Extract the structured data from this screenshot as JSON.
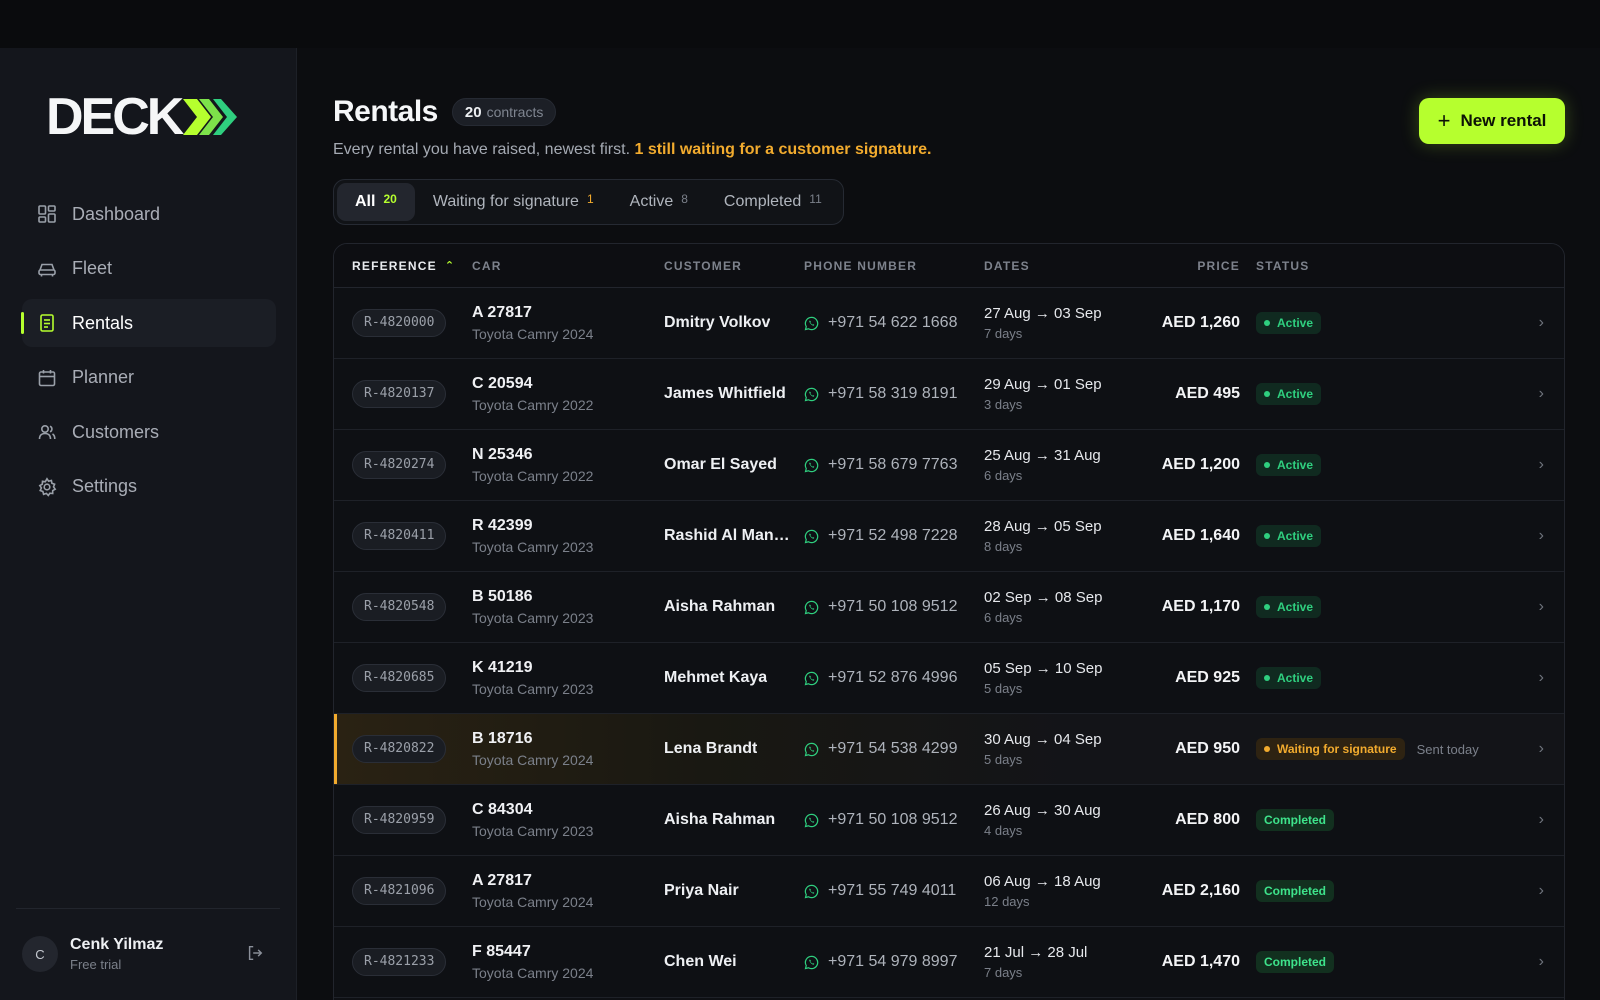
{
  "app": {
    "logo_text": "DECK",
    "accent": "#b6ff2e",
    "warning": "#f2ab2e",
    "success": "#2fcf7f"
  },
  "sidebar": {
    "items": [
      {
        "label": "Dashboard",
        "icon": "dashboard-icon",
        "active": false
      },
      {
        "label": "Fleet",
        "icon": "car-icon",
        "active": false
      },
      {
        "label": "Rentals",
        "icon": "receipt-icon",
        "active": true
      },
      {
        "label": "Planner",
        "icon": "calendar-icon",
        "active": false
      },
      {
        "label": "Customers",
        "icon": "users-icon",
        "active": false
      },
      {
        "label": "Settings",
        "icon": "gear-icon",
        "active": false
      }
    ],
    "user": {
      "initial": "C",
      "name": "Cenk Yilmaz",
      "plan": "Free trial",
      "logout_icon": "logout-icon"
    }
  },
  "header": {
    "title": "Rentals",
    "count_value": "20",
    "count_unit": "contracts",
    "subtitle": "Every rental you have raised, newest first.",
    "subtitle_warning": "1 still waiting for a customer signature.",
    "new_button": "New rental"
  },
  "tabs": [
    {
      "label": "All",
      "count": "20",
      "active": true
    },
    {
      "label": "Waiting for signature",
      "count": "1",
      "active": false
    },
    {
      "label": "Active",
      "count": "8",
      "active": false
    },
    {
      "label": "Completed",
      "count": "11",
      "active": false
    }
  ],
  "table": {
    "columns": {
      "reference": "REFERENCE",
      "car": "CAR",
      "customer": "CUSTOMER",
      "phone": "PHONE NUMBER",
      "dates": "DATES",
      "price": "PRICE",
      "status": "STATUS"
    },
    "rows": [
      {
        "ref": "R-4820000",
        "plate": "A 27817",
        "model": "Toyota Camry 2024",
        "customer": "Dmitry Volkov",
        "phone": "+971 54 622 1668",
        "range": "27 Aug → 03 Sep",
        "days": "7 days",
        "price": "AED 1,260",
        "status": "Active",
        "kind": "active",
        "note": ""
      },
      {
        "ref": "R-4820137",
        "plate": "C 20594",
        "model": "Toyota Camry 2022",
        "customer": "James Whitfield",
        "phone": "+971 58 319 8191",
        "range": "29 Aug → 01 Sep",
        "days": "3 days",
        "price": "AED 495",
        "status": "Active",
        "kind": "active",
        "note": ""
      },
      {
        "ref": "R-4820274",
        "plate": "N 25346",
        "model": "Toyota Camry 2022",
        "customer": "Omar El Sayed",
        "phone": "+971 58 679 7763",
        "range": "25 Aug → 31 Aug",
        "days": "6 days",
        "price": "AED 1,200",
        "status": "Active",
        "kind": "active",
        "note": ""
      },
      {
        "ref": "R-4820411",
        "plate": "R 42399",
        "model": "Toyota Camry 2023",
        "customer": "Rashid Al Mans...",
        "phone": "+971 52 498 7228",
        "range": "28 Aug → 05 Sep",
        "days": "8 days",
        "price": "AED 1,640",
        "status": "Active",
        "kind": "active",
        "note": ""
      },
      {
        "ref": "R-4820548",
        "plate": "B 50186",
        "model": "Toyota Camry 2023",
        "customer": "Aisha Rahman",
        "phone": "+971 50 108 9512",
        "range": "02 Sep → 08 Sep",
        "days": "6 days",
        "price": "AED 1,170",
        "status": "Active",
        "kind": "active",
        "note": ""
      },
      {
        "ref": "R-4820685",
        "plate": "K 41219",
        "model": "Toyota Camry 2023",
        "customer": "Mehmet Kaya",
        "phone": "+971 52 876 4996",
        "range": "05 Sep → 10 Sep",
        "days": "5 days",
        "price": "AED 925",
        "status": "Active",
        "kind": "active",
        "note": ""
      },
      {
        "ref": "R-4820822",
        "plate": "B 18716",
        "model": "Toyota Camry 2024",
        "customer": "Lena Brandt",
        "phone": "+971 54 538 4299",
        "range": "30 Aug → 04 Sep",
        "days": "5 days",
        "price": "AED 950",
        "status": "Waiting for signature",
        "kind": "waiting",
        "note": "Sent today"
      },
      {
        "ref": "R-4820959",
        "plate": "C 84304",
        "model": "Toyota Camry 2023",
        "customer": "Aisha Rahman",
        "phone": "+971 50 108 9512",
        "range": "26 Aug → 30 Aug",
        "days": "4 days",
        "price": "AED 800",
        "status": "Completed",
        "kind": "completed",
        "note": ""
      },
      {
        "ref": "R-4821096",
        "plate": "A 27817",
        "model": "Toyota Camry 2024",
        "customer": "Priya Nair",
        "phone": "+971 55 749 4011",
        "range": "06 Aug → 18 Aug",
        "days": "12 days",
        "price": "AED 2,160",
        "status": "Completed",
        "kind": "completed",
        "note": ""
      },
      {
        "ref": "R-4821233",
        "plate": "F 85447",
        "model": "Toyota Camry 2024",
        "customer": "Chen Wei",
        "phone": "+971 54 979 8997",
        "range": "21 Jul → 28 Jul",
        "days": "7 days",
        "price": "AED 1,470",
        "status": "Completed",
        "kind": "completed",
        "note": ""
      }
    ]
  }
}
